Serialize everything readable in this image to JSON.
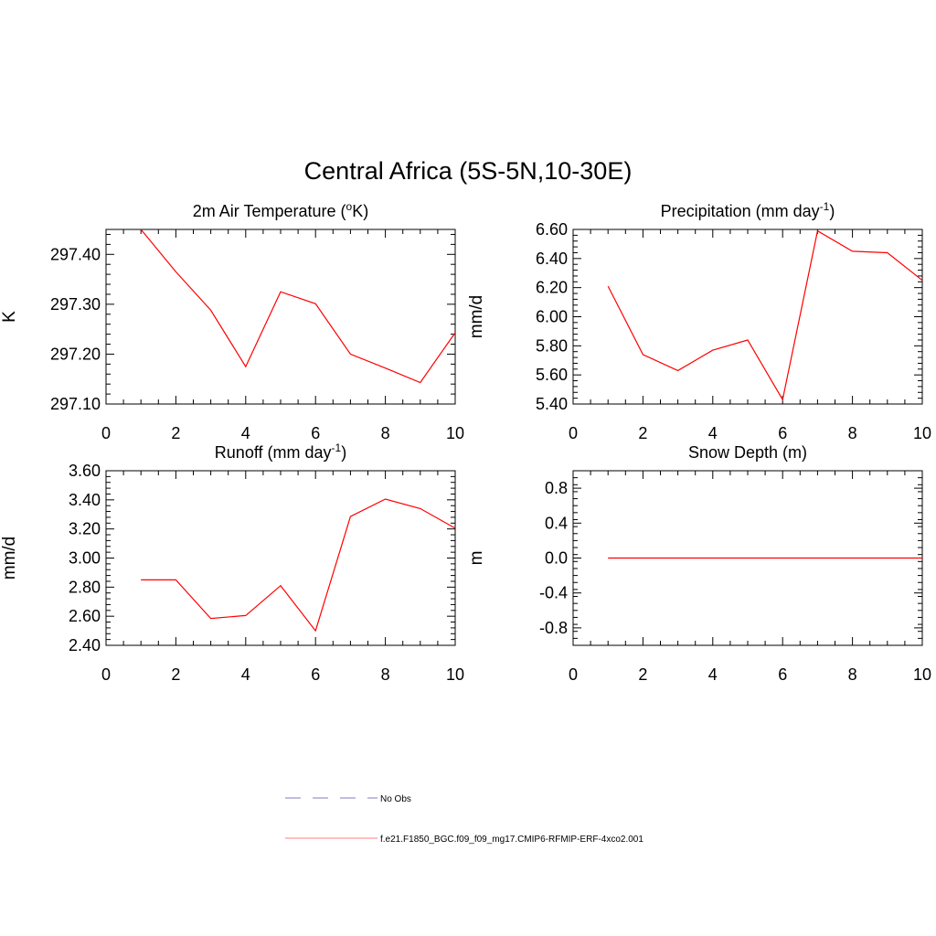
{
  "figure": {
    "title": "Central Africa (5S-5N,10-30E)"
  },
  "colors": {
    "model_line": "#ff0000",
    "obs_line": "#9999cc",
    "axis": "#000000"
  },
  "legend": {
    "obs_label": "No Obs",
    "model_label": "f.e21.F1850_BGC.f09_f09_mg17.CMIP6-RFMIP-ERF-4xco2.001"
  },
  "chart_data": [
    {
      "type": "line",
      "title_main": "2m Air Temperature (",
      "title_sup": "o",
      "title_post": "K)",
      "ylabel": "K",
      "xlim": [
        0,
        10
      ],
      "ylim": [
        297.1,
        297.45
      ],
      "xticks": [
        0,
        2,
        4,
        6,
        8,
        10
      ],
      "yticks": [
        297.1,
        297.2,
        297.3,
        297.4
      ],
      "ytick_labels": [
        "297.10",
        "297.20",
        "297.30",
        "297.40"
      ],
      "series": [
        {
          "x": [
            1,
            2,
            3,
            4,
            5,
            6,
            7,
            8,
            9,
            10
          ],
          "y": [
            297.45,
            297.365,
            297.288,
            297.175,
            297.325,
            297.301,
            297.2,
            297.172,
            297.143,
            297.243
          ]
        }
      ]
    },
    {
      "type": "line",
      "title_main": "Precipitation (mm day",
      "title_sup": "-1",
      "title_post": ")",
      "ylabel": "mm/d",
      "xlim": [
        0,
        10
      ],
      "ylim": [
        5.4,
        6.6
      ],
      "xticks": [
        0,
        2,
        4,
        6,
        8,
        10
      ],
      "yticks": [
        5.4,
        5.6,
        5.8,
        6.0,
        6.2,
        6.4,
        6.6
      ],
      "ytick_labels": [
        "5.40",
        "5.60",
        "5.80",
        "6.00",
        "6.20",
        "6.40",
        "6.60"
      ],
      "series": [
        {
          "x": [
            1,
            2,
            3,
            4,
            5,
            6,
            7,
            8,
            9,
            10
          ],
          "y": [
            6.21,
            5.74,
            5.63,
            5.77,
            5.84,
            5.43,
            6.59,
            6.45,
            6.44,
            6.25
          ]
        }
      ]
    },
    {
      "type": "line",
      "title_main": "Runoff (mm day",
      "title_sup": "-1",
      "title_post": ")",
      "ylabel": "mm/d",
      "xlim": [
        0,
        10
      ],
      "ylim": [
        2.4,
        3.6
      ],
      "xticks": [
        0,
        2,
        4,
        6,
        8,
        10
      ],
      "yticks": [
        2.4,
        2.6,
        2.8,
        3.0,
        3.2,
        3.4,
        3.6
      ],
      "ytick_labels": [
        "2.40",
        "2.60",
        "2.80",
        "3.00",
        "3.20",
        "3.40",
        "3.60"
      ],
      "series": [
        {
          "x": [
            1,
            2,
            3,
            4,
            5,
            6,
            7,
            8,
            9,
            10
          ],
          "y": [
            2.85,
            2.85,
            2.585,
            2.605,
            2.81,
            2.5,
            3.285,
            3.405,
            3.34,
            3.205
          ]
        }
      ]
    },
    {
      "type": "line",
      "title_main": "Snow Depth (m)",
      "title_sup": "",
      "title_post": "",
      "ylabel": "m",
      "xlim": [
        0,
        10
      ],
      "ylim": [
        -1.0,
        1.0
      ],
      "xticks": [
        0,
        2,
        4,
        6,
        8,
        10
      ],
      "yticks": [
        -0.8,
        -0.4,
        0.0,
        0.4,
        0.8
      ],
      "ytick_labels": [
        "-0.8",
        "-0.4",
        "0.0",
        "0.4",
        "0.8"
      ],
      "series": [
        {
          "x": [
            1,
            2,
            3,
            4,
            5,
            6,
            7,
            8,
            9,
            10
          ],
          "y": [
            0,
            0,
            0,
            0,
            0,
            0,
            0,
            0,
            0,
            0
          ]
        }
      ]
    }
  ]
}
